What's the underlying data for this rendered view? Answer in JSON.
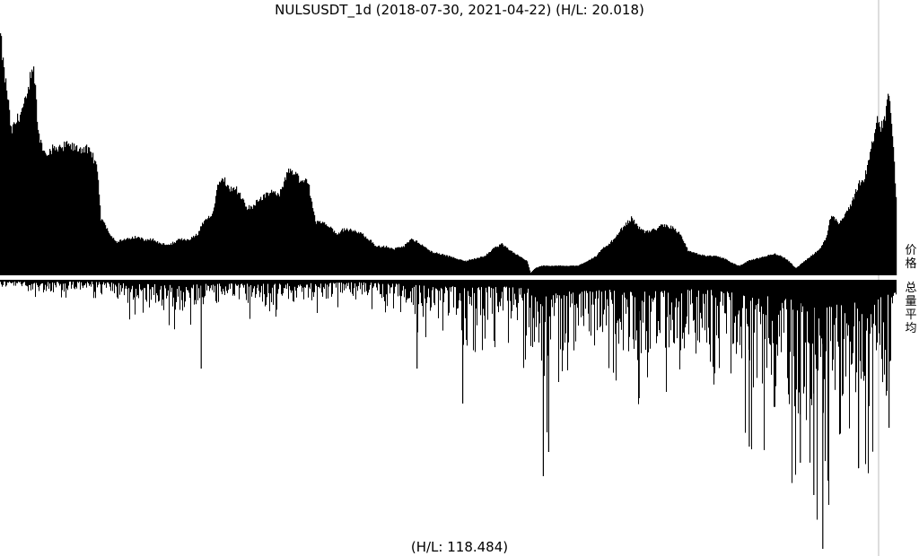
{
  "chart_data": {
    "type": "area",
    "title": "NULSUSDT_1d (2018-07-30, 2021-04-22) (H/L: 20.018)",
    "start_date": "2018-07-30",
    "end_date": "2021-04-22",
    "price_label": "价格",
    "volume_label": "总量平均",
    "volume_footer": "(H/L: 118.484)",
    "price_hl_ratio": 20.018,
    "volume_hl_ratio": 118.484,
    "price_envelope": [
      [
        0.0,
        1.0
      ],
      [
        0.004,
        0.85
      ],
      [
        0.008,
        0.75
      ],
      [
        0.012,
        0.6
      ],
      [
        0.016,
        0.63
      ],
      [
        0.02,
        0.66
      ],
      [
        0.025,
        0.7
      ],
      [
        0.03,
        0.74
      ],
      [
        0.035,
        0.88
      ],
      [
        0.038,
        0.84
      ],
      [
        0.042,
        0.6
      ],
      [
        0.048,
        0.52
      ],
      [
        0.055,
        0.52
      ],
      [
        0.065,
        0.54
      ],
      [
        0.075,
        0.54
      ],
      [
        0.085,
        0.53
      ],
      [
        0.095,
        0.53
      ],
      [
        0.103,
        0.5
      ],
      [
        0.108,
        0.45
      ],
      [
        0.112,
        0.24
      ],
      [
        0.12,
        0.19
      ],
      [
        0.125,
        0.16
      ],
      [
        0.13,
        0.14
      ],
      [
        0.14,
        0.15
      ],
      [
        0.15,
        0.16
      ],
      [
        0.16,
        0.15
      ],
      [
        0.17,
        0.15
      ],
      [
        0.18,
        0.13
      ],
      [
        0.19,
        0.13
      ],
      [
        0.2,
        0.15
      ],
      [
        0.21,
        0.15
      ],
      [
        0.22,
        0.17
      ],
      [
        0.225,
        0.21
      ],
      [
        0.232,
        0.24
      ],
      [
        0.238,
        0.27
      ],
      [
        0.243,
        0.39
      ],
      [
        0.248,
        0.42
      ],
      [
        0.255,
        0.36
      ],
      [
        0.262,
        0.37
      ],
      [
        0.268,
        0.33
      ],
      [
        0.275,
        0.28
      ],
      [
        0.282,
        0.29
      ],
      [
        0.288,
        0.32
      ],
      [
        0.295,
        0.33
      ],
      [
        0.305,
        0.35
      ],
      [
        0.312,
        0.34
      ],
      [
        0.318,
        0.41
      ],
      [
        0.323,
        0.44
      ],
      [
        0.33,
        0.43
      ],
      [
        0.336,
        0.38
      ],
      [
        0.343,
        0.4
      ],
      [
        0.348,
        0.3
      ],
      [
        0.352,
        0.22
      ],
      [
        0.36,
        0.22
      ],
      [
        0.368,
        0.2
      ],
      [
        0.375,
        0.17
      ],
      [
        0.382,
        0.19
      ],
      [
        0.39,
        0.19
      ],
      [
        0.398,
        0.18
      ],
      [
        0.405,
        0.17
      ],
      [
        0.412,
        0.15
      ],
      [
        0.42,
        0.12
      ],
      [
        0.43,
        0.12
      ],
      [
        0.44,
        0.11
      ],
      [
        0.45,
        0.12
      ],
      [
        0.458,
        0.15
      ],
      [
        0.466,
        0.14
      ],
      [
        0.473,
        0.12
      ],
      [
        0.48,
        0.1
      ],
      [
        0.49,
        0.09
      ],
      [
        0.5,
        0.08
      ],
      [
        0.51,
        0.07
      ],
      [
        0.52,
        0.06
      ],
      [
        0.53,
        0.07
      ],
      [
        0.54,
        0.08
      ],
      [
        0.55,
        0.11
      ],
      [
        0.56,
        0.13
      ],
      [
        0.57,
        0.1
      ],
      [
        0.58,
        0.08
      ],
      [
        0.588,
        0.06
      ],
      [
        0.592,
        0.01
      ],
      [
        0.597,
        0.03
      ],
      [
        0.605,
        0.04
      ],
      [
        0.615,
        0.04
      ],
      [
        0.625,
        0.04
      ],
      [
        0.635,
        0.04
      ],
      [
        0.645,
        0.04
      ],
      [
        0.655,
        0.06
      ],
      [
        0.665,
        0.08
      ],
      [
        0.675,
        0.12
      ],
      [
        0.685,
        0.15
      ],
      [
        0.695,
        0.2
      ],
      [
        0.705,
        0.24
      ],
      [
        0.712,
        0.2
      ],
      [
        0.72,
        0.18
      ],
      [
        0.73,
        0.19
      ],
      [
        0.74,
        0.21
      ],
      [
        0.75,
        0.2
      ],
      [
        0.76,
        0.17
      ],
      [
        0.768,
        0.1
      ],
      [
        0.778,
        0.09
      ],
      [
        0.788,
        0.08
      ],
      [
        0.798,
        0.08
      ],
      [
        0.808,
        0.07
      ],
      [
        0.818,
        0.05
      ],
      [
        0.825,
        0.04
      ],
      [
        0.835,
        0.06
      ],
      [
        0.845,
        0.07
      ],
      [
        0.855,
        0.08
      ],
      [
        0.865,
        0.09
      ],
      [
        0.872,
        0.08
      ],
      [
        0.88,
        0.06
      ],
      [
        0.888,
        0.03
      ],
      [
        0.895,
        0.05
      ],
      [
        0.905,
        0.08
      ],
      [
        0.915,
        0.11
      ],
      [
        0.922,
        0.16
      ],
      [
        0.928,
        0.26
      ],
      [
        0.935,
        0.22
      ],
      [
        0.942,
        0.24
      ],
      [
        0.95,
        0.3
      ],
      [
        0.958,
        0.38
      ],
      [
        0.965,
        0.41
      ],
      [
        0.972,
        0.52
      ],
      [
        0.978,
        0.65
      ],
      [
        0.983,
        0.62
      ],
      [
        0.988,
        0.66
      ],
      [
        0.992,
        0.78
      ],
      [
        0.996,
        0.6
      ],
      [
        1.0,
        0.32
      ]
    ],
    "volume_envelope": [
      [
        0.0,
        0.03
      ],
      [
        0.05,
        0.05
      ],
      [
        0.1,
        0.04
      ],
      [
        0.15,
        0.1
      ],
      [
        0.2,
        0.12
      ],
      [
        0.25,
        0.09
      ],
      [
        0.3,
        0.1
      ],
      [
        0.35,
        0.08
      ],
      [
        0.4,
        0.06
      ],
      [
        0.44,
        0.09
      ],
      [
        0.47,
        0.14
      ],
      [
        0.5,
        0.15
      ],
      [
        0.53,
        0.18
      ],
      [
        0.56,
        0.16
      ],
      [
        0.59,
        0.22
      ],
      [
        0.6,
        0.45
      ],
      [
        0.62,
        0.32
      ],
      [
        0.65,
        0.26
      ],
      [
        0.68,
        0.24
      ],
      [
        0.71,
        0.3
      ],
      [
        0.74,
        0.27
      ],
      [
        0.77,
        0.22
      ],
      [
        0.8,
        0.26
      ],
      [
        0.82,
        0.3
      ],
      [
        0.84,
        0.42
      ],
      [
        0.86,
        0.4
      ],
      [
        0.88,
        0.48
      ],
      [
        0.9,
        0.55
      ],
      [
        0.92,
        0.7
      ],
      [
        0.94,
        0.58
      ],
      [
        0.96,
        0.52
      ],
      [
        0.98,
        0.45
      ],
      [
        1.0,
        0.3
      ]
    ],
    "volume_spikes": [
      [
        0.224,
        0.33
      ],
      [
        0.465,
        0.33
      ],
      [
        0.516,
        0.46
      ],
      [
        0.606,
        0.73
      ],
      [
        0.612,
        0.64
      ],
      [
        0.713,
        0.44
      ],
      [
        0.836,
        0.62
      ],
      [
        0.893,
        0.68
      ],
      [
        0.908,
        0.8
      ],
      [
        0.918,
        1.0
      ],
      [
        0.958,
        0.7
      ],
      [
        0.992,
        0.55
      ]
    ]
  }
}
